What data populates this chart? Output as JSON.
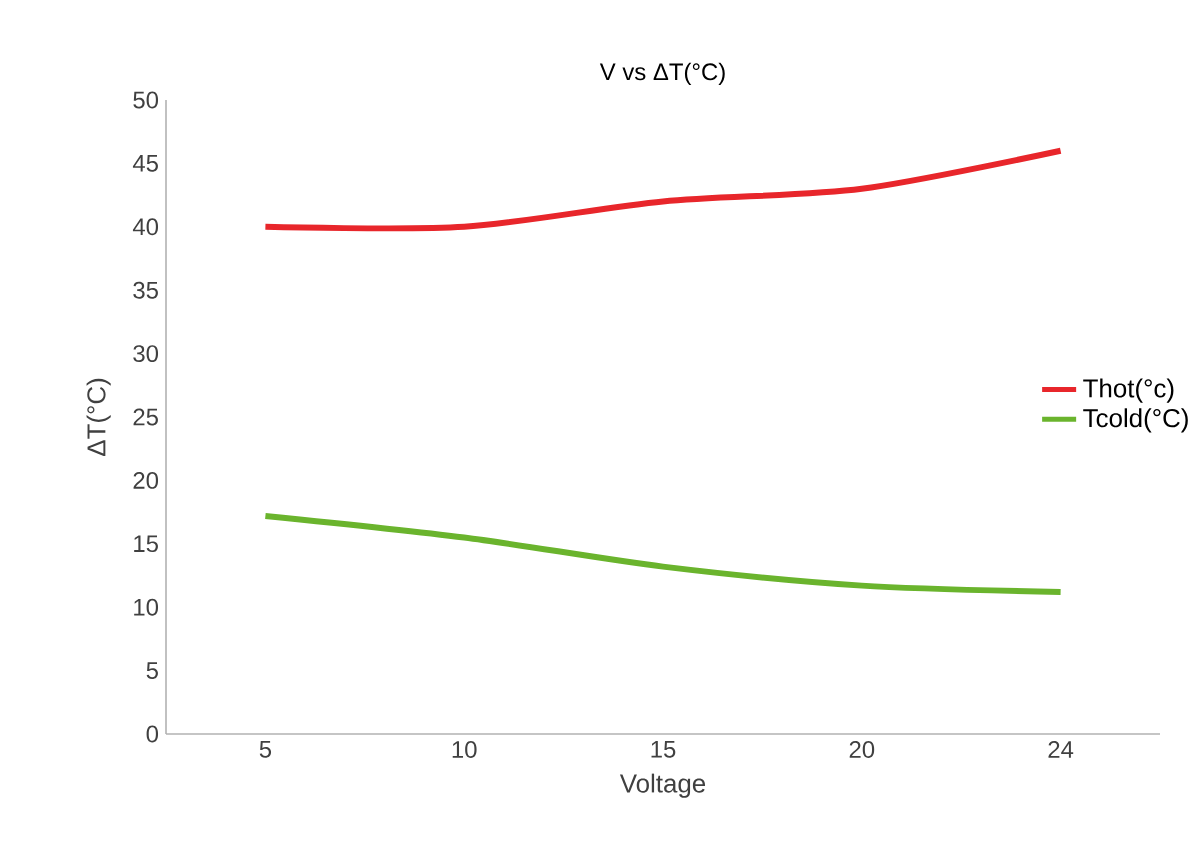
{
  "chart_data": {
    "type": "line",
    "title": "V vs ΔT(°C)",
    "xlabel": "Voltage",
    "ylabel": "ΔT(°C)",
    "categories": [
      "5",
      "10",
      "15",
      "20",
      "24"
    ],
    "series": [
      {
        "name": "Thot(°c)",
        "color": "#e8262b",
        "values": [
          40,
          40,
          42,
          43,
          46
        ]
      },
      {
        "name": "Tcold(°C)",
        "color": "#6ab42d",
        "values": [
          17.2,
          15.5,
          13.2,
          11.7,
          11.2
        ]
      }
    ],
    "ylim": [
      0,
      50
    ],
    "yticks": [
      0,
      5,
      10,
      15,
      20,
      25,
      30,
      35,
      40,
      45,
      50
    ],
    "grid": false,
    "legend": "right",
    "marker": "none",
    "line_style": "solid"
  }
}
